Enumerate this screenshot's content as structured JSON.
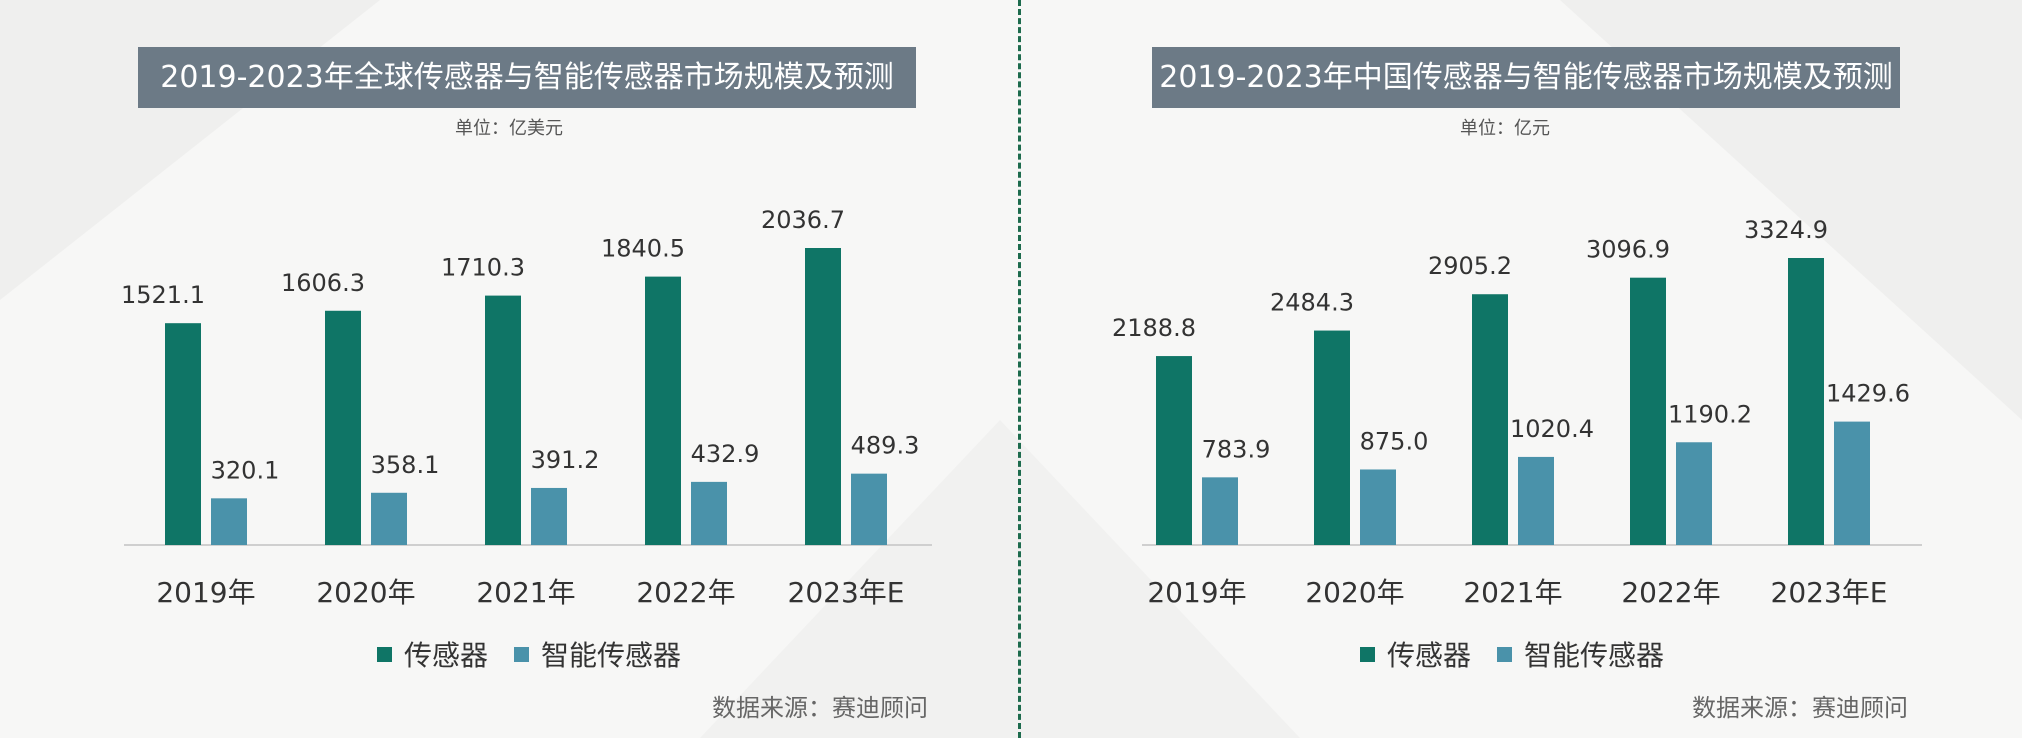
{
  "colors": {
    "sensor": "#0f7566",
    "smart_sensor": "#4a92aa",
    "title_bg": "#6c7a86",
    "divider": "#1d6b4d"
  },
  "left": {
    "title": "2019-2023年全球传感器与智能传感器市场规模及预测",
    "unit": "单位：亿美元",
    "source": "数据来源：赛迪顾问",
    "legend": [
      "传感器",
      "智能传感器"
    ]
  },
  "right": {
    "title": "2019-2023年中国传感器与智能传感器市场规模及预测",
    "unit": "单位：亿元",
    "source": "数据来源：赛迪顾问",
    "legend": [
      "传感器",
      "智能传感器"
    ]
  },
  "chart_data": [
    {
      "type": "bar",
      "title": "2019-2023年全球传感器与智能传感器市场规模及预测",
      "unit": "亿美元",
      "categories": [
        "2019年",
        "2020年",
        "2021年",
        "2022年",
        "2023年E"
      ],
      "series": [
        {
          "name": "传感器",
          "values": [
            1521.1,
            1606.3,
            1710.3,
            1840.5,
            2036.7
          ],
          "labels": [
            "1521.1",
            "1606.3",
            "1710.3",
            "1840.5",
            "2036.7"
          ]
        },
        {
          "name": "智能传感器",
          "values": [
            320.1,
            358.1,
            391.2,
            432.9,
            489.3
          ],
          "labels": [
            "320.1",
            "358.1",
            "391.2",
            "432.9",
            "489.3"
          ]
        }
      ],
      "legend": "bottom",
      "grid": false
    },
    {
      "type": "bar",
      "title": "2019-2023年中国传感器与智能传感器市场规模及预测",
      "unit": "亿元",
      "categories": [
        "2019年",
        "2020年",
        "2021年",
        "2022年",
        "2023年E"
      ],
      "series": [
        {
          "name": "传感器",
          "values": [
            2188.8,
            2484.3,
            2905.2,
            3096.9,
            3324.9
          ],
          "labels": [
            "2188.8",
            "2484.3",
            "2905.2",
            "3096.9",
            "3324.9"
          ]
        },
        {
          "name": "智能传感器",
          "values": [
            783.9,
            875.0,
            1020.4,
            1190.2,
            1429.6
          ],
          "labels": [
            "783.9",
            "875.0",
            "1020.4",
            "1190.2",
            "1429.6"
          ]
        }
      ],
      "legend": "bottom",
      "grid": false
    }
  ]
}
